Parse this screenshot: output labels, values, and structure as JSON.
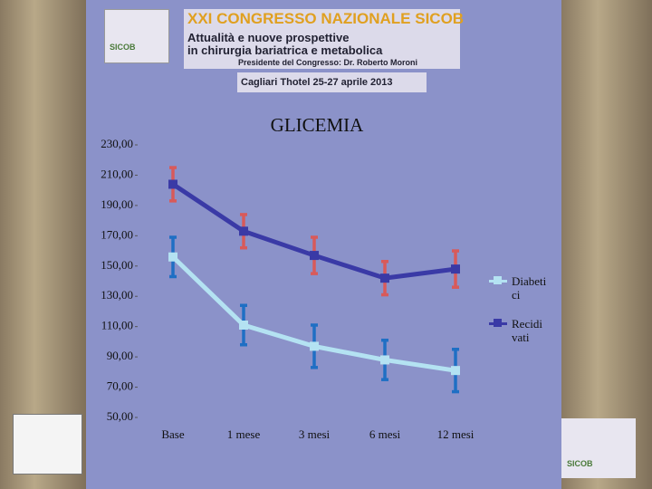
{
  "header": {
    "logo": "SICOB",
    "title": "XXI CONGRESSO NAZIONALE SICOB",
    "subtitle_1": "Attualità e nuove prospettive",
    "subtitle_2": "in chirurgia bariatrica e metabolica",
    "president": "Presidente del Congresso: Dr. Roberto Moroni",
    "venue": "Cagliari Thotel 25-27 aprile 2013"
  },
  "footer_logo": "SICOB",
  "chart_data": {
    "type": "line",
    "title": "GLICEMIA",
    "categories": [
      "Base",
      "1 mese",
      "3 mesi",
      "6 mesi",
      "12 mesi"
    ],
    "ylim": [
      50,
      230
    ],
    "yticks": [
      {
        "value": 50,
        "label": "50,00"
      },
      {
        "value": 70,
        "label": "70,00"
      },
      {
        "value": 90,
        "label": "90,00"
      },
      {
        "value": 110,
        "label": "110,00"
      },
      {
        "value": 130,
        "label": "130,00"
      },
      {
        "value": 150,
        "label": "150,00"
      },
      {
        "value": 170,
        "label": "170,00"
      },
      {
        "value": 190,
        "label": "190,00"
      },
      {
        "value": 210,
        "label": "210,00"
      },
      {
        "value": 230,
        "label": "230,00"
      }
    ],
    "grid": false,
    "legend": "right",
    "series": [
      {
        "name": "Diabetici",
        "color": "#b4e2f2",
        "error_color": "#1f6fc4",
        "values": [
          156,
          111,
          97,
          88,
          81
        ],
        "errors": [
          13,
          13,
          14,
          13,
          14
        ]
      },
      {
        "name": "Recidivati",
        "color": "#3a3aa6",
        "error_color": "#d85a5a",
        "values": [
          204,
          173,
          157,
          142,
          148
        ],
        "errors": [
          11,
          11,
          12,
          11,
          12
        ]
      }
    ]
  }
}
